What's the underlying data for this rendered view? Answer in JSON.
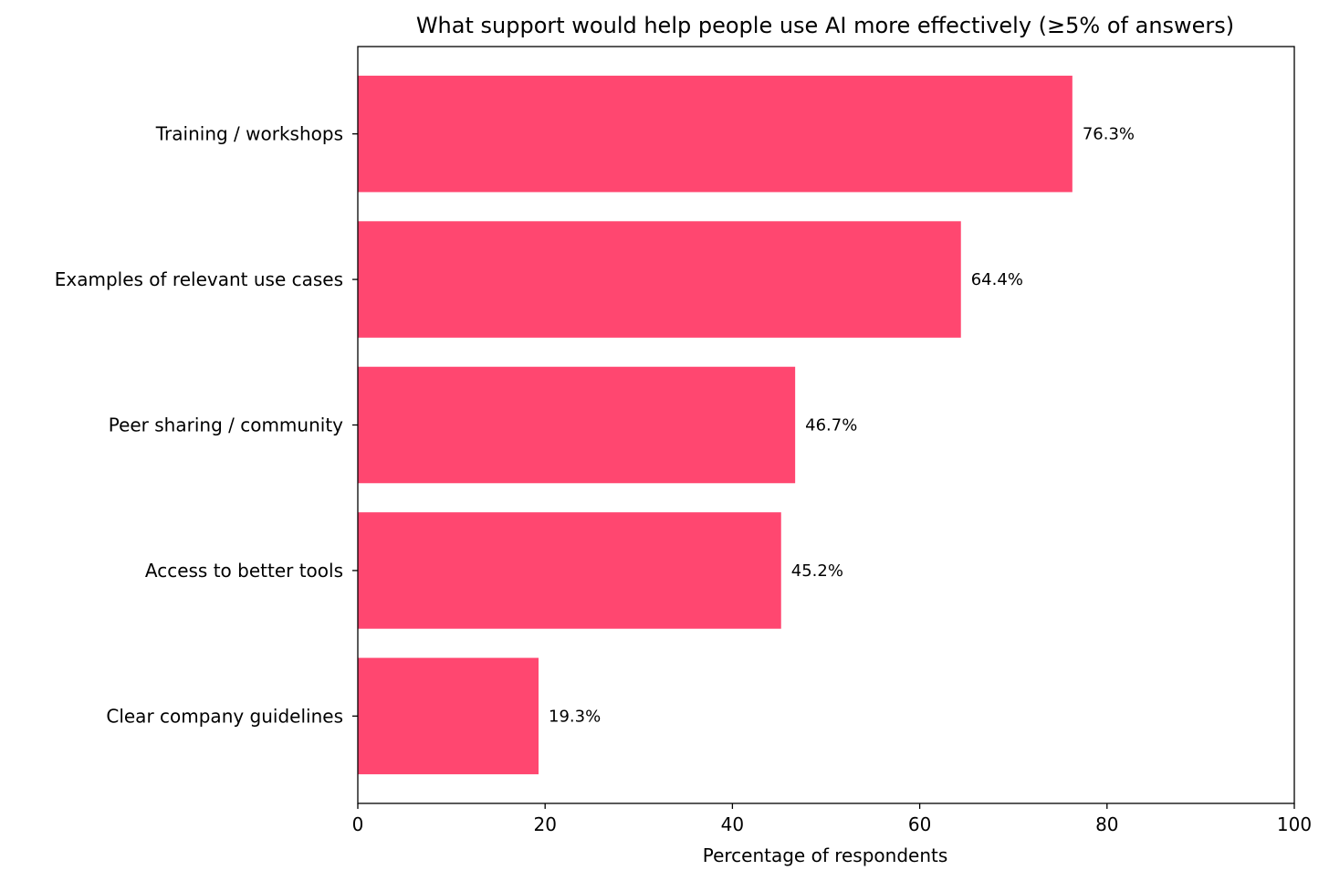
{
  "chart_data": {
    "type": "bar",
    "orientation": "horizontal",
    "title": "What support would help people use AI more effectively (≥5% of answers)",
    "xlabel": "Percentage of respondents",
    "ylabel": "",
    "categories": [
      "Training / workshops",
      "Examples of relevant use cases",
      "Peer sharing / community",
      "Access to better tools",
      "Clear company guidelines"
    ],
    "values": [
      76.3,
      64.4,
      46.7,
      45.2,
      19.3
    ],
    "value_labels": [
      "76.3%",
      "64.4%",
      "46.7%",
      "45.2%",
      "19.3%"
    ],
    "xlim": [
      0,
      100
    ],
    "xticks": [
      0,
      20,
      40,
      60,
      80,
      100
    ],
    "xtick_labels": [
      "0",
      "20",
      "40",
      "60",
      "80",
      "100"
    ],
    "grid": false,
    "bar_color": "#ff4770"
  }
}
